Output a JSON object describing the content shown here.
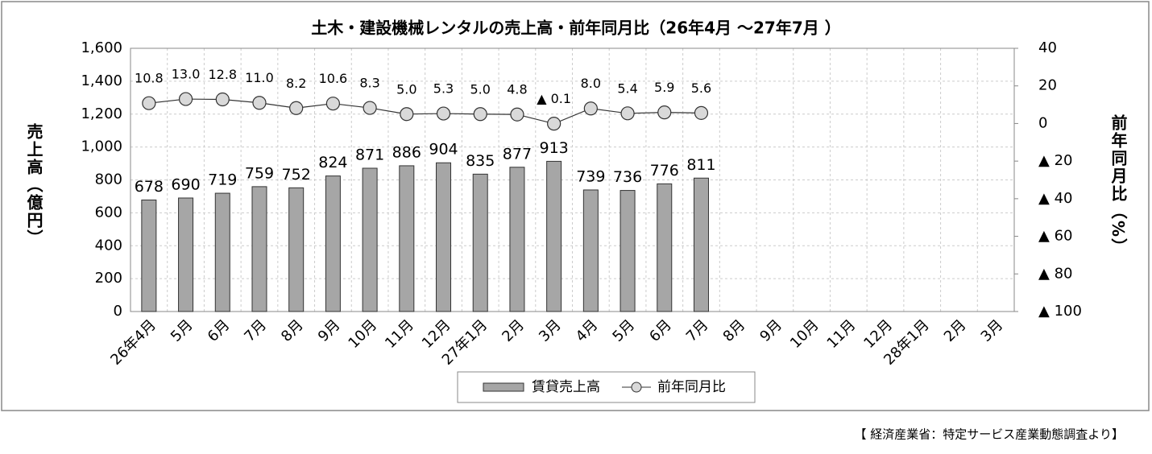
{
  "chart_data": {
    "type": "bar-line",
    "title": "土木・建設機械レンタルの売上高・前年同月比（26年4月 ～27年7月 ）",
    "y_label": "売上高（億円）",
    "y2_label": "前年同月比（%）",
    "source": "【 経済産業省：特定サービス産業動態調査より】",
    "categories": [
      "26年4月",
      "5月",
      "6月",
      "7月",
      "8月",
      "9月",
      "10月",
      "11月",
      "12月",
      "27年1月",
      "2月",
      "3月",
      "4月",
      "5月",
      "6月",
      "7月",
      "8月",
      "9月",
      "10月",
      "11月",
      "12月",
      "28年1月",
      "2月",
      "3月"
    ],
    "series": [
      {
        "name": "賃貸売上高",
        "type": "bar",
        "color": "#a6a6a6",
        "values": [
          678,
          690,
          719,
          759,
          752,
          824,
          871,
          886,
          904,
          835,
          877,
          913,
          739,
          736,
          776,
          811,
          null,
          null,
          null,
          null,
          null,
          null,
          null,
          null
        ]
      },
      {
        "name": "前年同月比",
        "type": "line",
        "axis": "y2",
        "color": "#d9d9d9",
        "values": [
          10.8,
          13.0,
          12.8,
          11.0,
          8.2,
          10.6,
          8.3,
          5.0,
          5.3,
          5.0,
          4.8,
          -0.1,
          8.0,
          5.4,
          5.9,
          5.6,
          null,
          null,
          null,
          null,
          null,
          null,
          null,
          null
        ],
        "value_labels": [
          "10.8",
          "13.0",
          "12.8",
          "11.0",
          "8.2",
          "10.6",
          "8.3",
          "5.0",
          "5.3",
          "5.0",
          "4.8",
          "▲ 0.1",
          "8.0",
          "5.4",
          "5.9",
          "5.6",
          null,
          null,
          null,
          null,
          null,
          null,
          null,
          null
        ]
      }
    ],
    "ylim": [
      0,
      1600
    ],
    "yticks": [
      0,
      200,
      400,
      600,
      800,
      {
        "value": 1000,
        "label": "1,000"
      },
      {
        "value": 1200,
        "label": "1,200"
      },
      {
        "value": 1400,
        "label": "1,400"
      },
      {
        "value": 1600,
        "label": "1,600"
      }
    ],
    "y2lim": [
      -100,
      40
    ],
    "y2ticks": [
      {
        "value": -100,
        "label": "▲ 100"
      },
      {
        "value": -80,
        "label": "▲ 80"
      },
      {
        "value": -60,
        "label": "▲ 60"
      },
      {
        "value": -40,
        "label": "▲ 40"
      },
      {
        "value": -20,
        "label": "▲ 20"
      },
      0,
      20,
      40
    ],
    "grid": true
  }
}
